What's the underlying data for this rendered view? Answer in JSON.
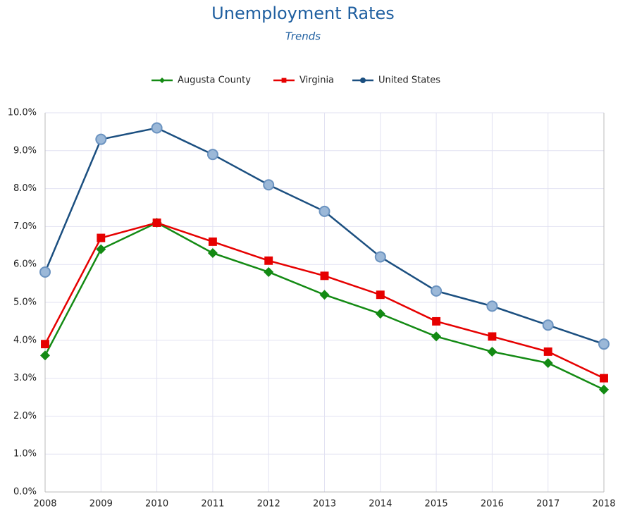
{
  "chart_data": {
    "type": "line",
    "title": "Unemployment Rates",
    "subtitle": "Trends",
    "categories": [
      "2008",
      "2009",
      "2010",
      "2011",
      "2012",
      "2013",
      "2014",
      "2015",
      "2016",
      "2017",
      "2018"
    ],
    "series": [
      {
        "name": "Augusta County",
        "color": "#138a13",
        "marker": "diamond",
        "values": [
          3.6,
          6.4,
          7.1,
          6.3,
          5.8,
          5.2,
          4.7,
          4.1,
          3.7,
          3.4,
          2.7
        ]
      },
      {
        "name": "Virginia",
        "color": "#e60000",
        "marker": "square",
        "values": [
          3.9,
          6.7,
          7.1,
          6.6,
          6.1,
          5.7,
          5.2,
          4.5,
          4.1,
          3.7,
          3.0
        ]
      },
      {
        "name": "United States",
        "color": "#1b4f80",
        "marker": "circle",
        "values": [
          5.8,
          9.3,
          9.6,
          8.9,
          8.1,
          7.4,
          6.2,
          5.3,
          4.9,
          4.4,
          3.9
        ]
      }
    ],
    "ylim": [
      0,
      10
    ],
    "yticks": [
      {
        "value": 0,
        "label": "0.0%"
      },
      {
        "value": 1,
        "label": "1.0%"
      },
      {
        "value": 2,
        "label": "2.0%"
      },
      {
        "value": 3,
        "label": "3.0%"
      },
      {
        "value": 4,
        "label": "4.0%"
      },
      {
        "value": 5,
        "label": "5.0%"
      },
      {
        "value": 6,
        "label": "6.0%"
      },
      {
        "value": 7,
        "label": "7.0%"
      },
      {
        "value": 8,
        "label": "8.0%"
      },
      {
        "value": 9,
        "label": "9.0%"
      },
      {
        "value": 10,
        "label": "10.0%"
      }
    ],
    "grid": true,
    "legend": "top"
  }
}
